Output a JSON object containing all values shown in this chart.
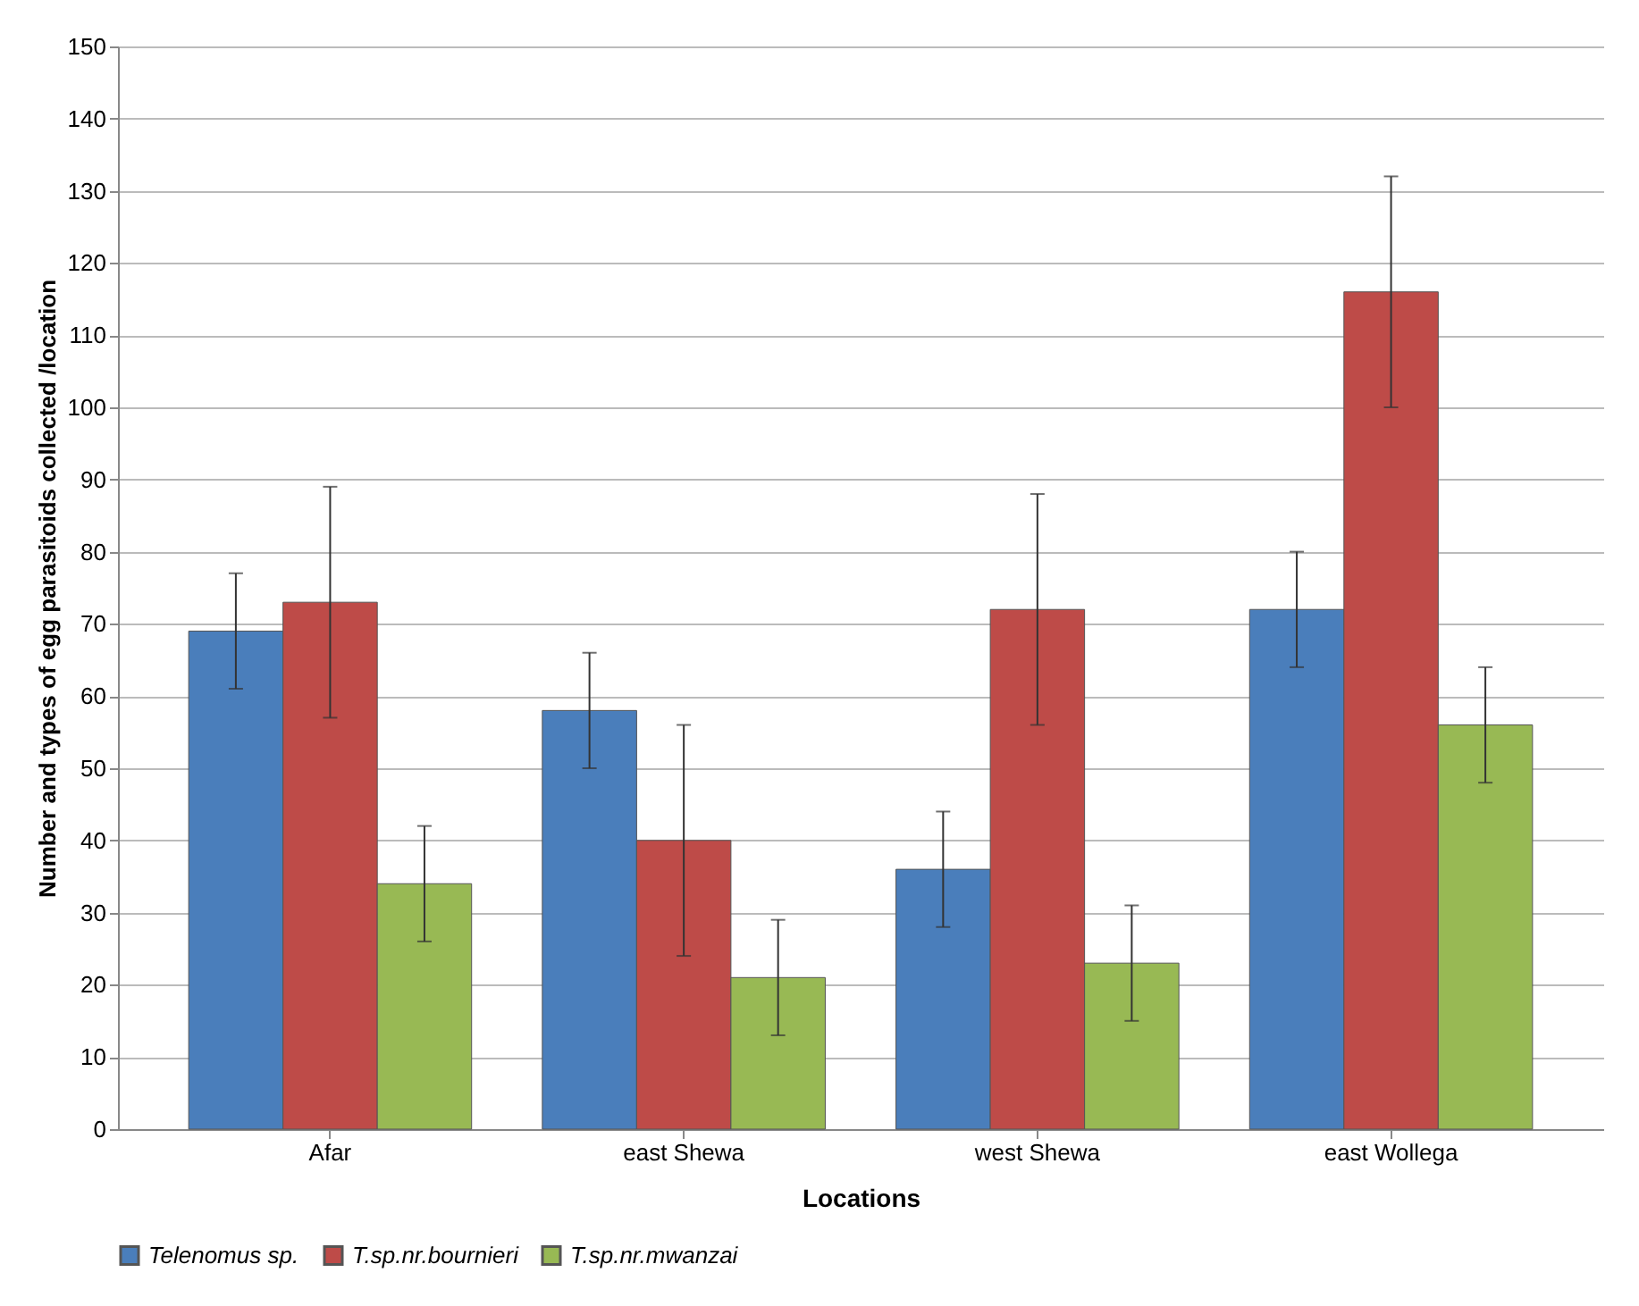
{
  "chart_data": {
    "type": "bar",
    "xlabel": "Locations",
    "ylabel": "Number and types of egg parasitoids collected /location",
    "categories": [
      "Afar",
      "east Shewa",
      "west Shewa",
      "east Wollega"
    ],
    "series": [
      {
        "name": "Telenomus sp.",
        "color": "#4a7ebb",
        "values": [
          69,
          58,
          36,
          72
        ],
        "errors": [
          8,
          8,
          8,
          8
        ]
      },
      {
        "name": "T.sp.nr.bournieri",
        "color": "#be4b48",
        "values": [
          73,
          40,
          72,
          116
        ],
        "errors": [
          16,
          16,
          16,
          16
        ]
      },
      {
        "name": "T.sp.nr.mwanzai",
        "color": "#98b954",
        "values": [
          34,
          21,
          23,
          56
        ],
        "errors": [
          8,
          8,
          8,
          8
        ]
      }
    ],
    "ylim": [
      0,
      150
    ],
    "yticks": [
      0,
      10,
      20,
      30,
      40,
      50,
      60,
      70,
      80,
      90,
      100,
      110,
      120,
      130,
      140,
      150
    ],
    "grid": "y",
    "legend": "bottom"
  }
}
